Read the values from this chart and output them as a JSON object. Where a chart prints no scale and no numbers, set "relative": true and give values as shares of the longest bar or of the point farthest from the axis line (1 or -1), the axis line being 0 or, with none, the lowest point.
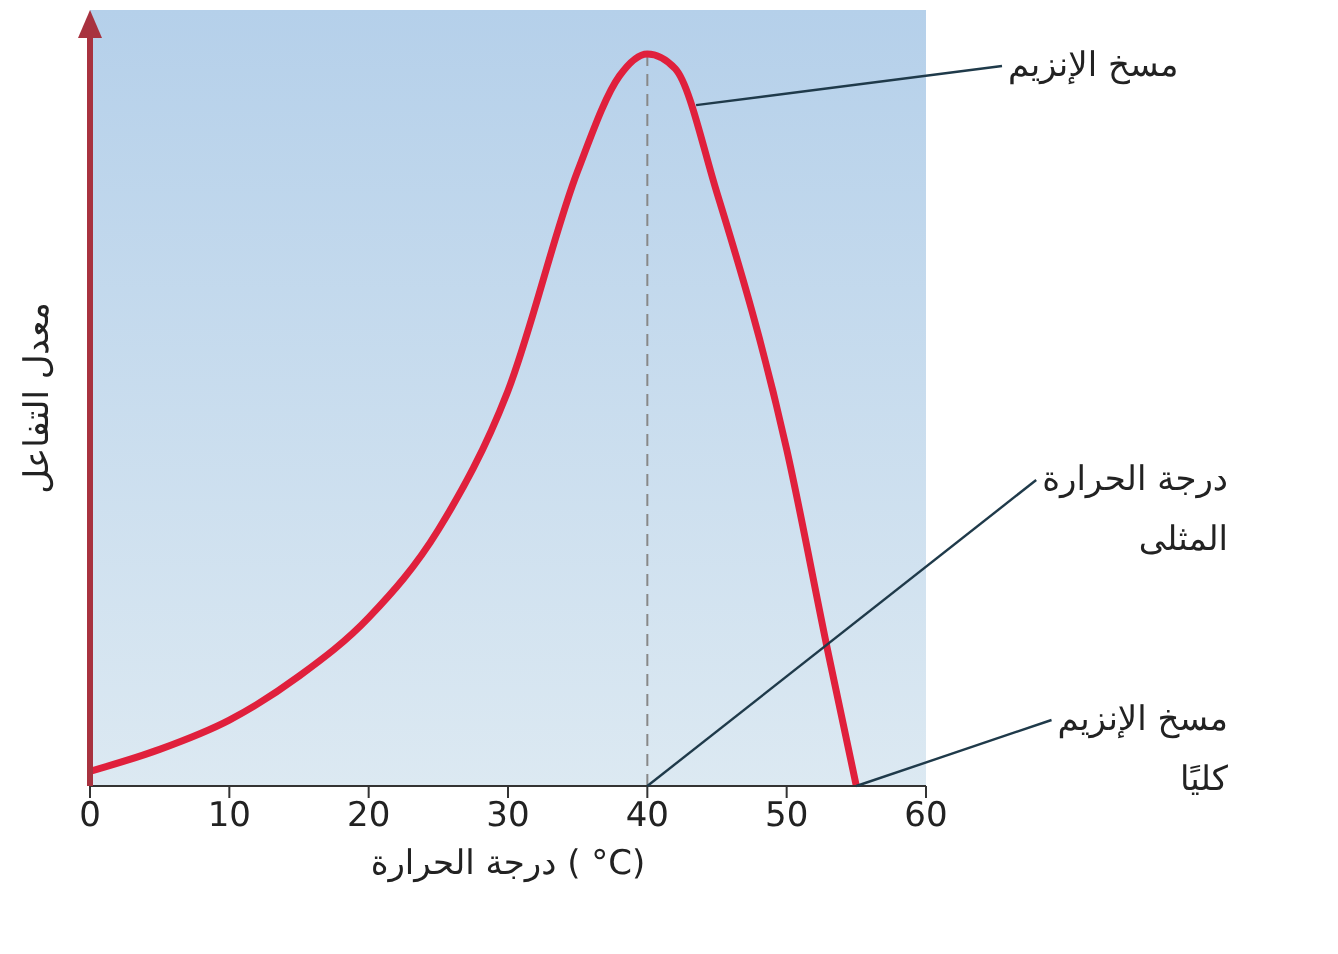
{
  "chart_data": {
    "type": "line",
    "relative": true,
    "xlabel": "درجة الحرارة ( °C)",
    "ylabel": "معدل التفاعل",
    "x": [
      0,
      5,
      10,
      15,
      20,
      25,
      30,
      35,
      38,
      40,
      42,
      45,
      50,
      53,
      55
    ],
    "series": [
      {
        "color": "#e0203c",
        "values": [
          0.02,
          0.05,
          0.09,
          0.15,
          0.23,
          0.35,
          0.54,
          0.84,
          0.97,
          1,
          0.98,
          0.81,
          0.46,
          0.18,
          0
        ]
      }
    ],
    "xlim": [
      0,
      60
    ],
    "xticks": [
      0,
      10,
      20,
      30,
      40,
      50,
      60
    ],
    "tick_labels": "x",
    "grid": false,
    "legend": false,
    "marker": "none",
    "line_style": "solid",
    "ref_lines": [
      {
        "axis": "x",
        "value": 40,
        "color": "#888888",
        "line_style": "dashed"
      }
    ],
    "annotations": [
      {
        "text": "مسخ الإنزيم",
        "x": 43.5,
        "y": 0.93
      },
      {
        "text": "درجة الحرارة المثلى",
        "x": 40,
        "y": 0
      },
      {
        "text": "مسخ الإنزيم كليًا",
        "x": 55,
        "y": 0
      }
    ]
  }
}
